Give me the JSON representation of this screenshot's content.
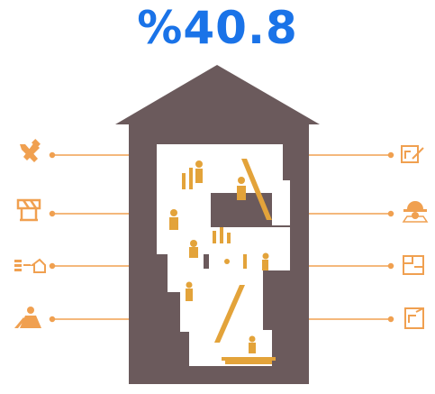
{
  "headline": {
    "value": "%40.8"
  },
  "colors": {
    "accent": "#1a73e8",
    "house": "#6b5a5c",
    "orange": "#f0a050",
    "gold": "#e3a33a"
  },
  "icons": {
    "left": [
      "tools-icon",
      "roadblock-icon",
      "materials-transport-icon",
      "worker-digging-icon"
    ],
    "right": [
      "blueprint-pencil-icon",
      "engineer-hardhat-icon",
      "floorplan-icon",
      "document-plan-icon"
    ]
  }
}
